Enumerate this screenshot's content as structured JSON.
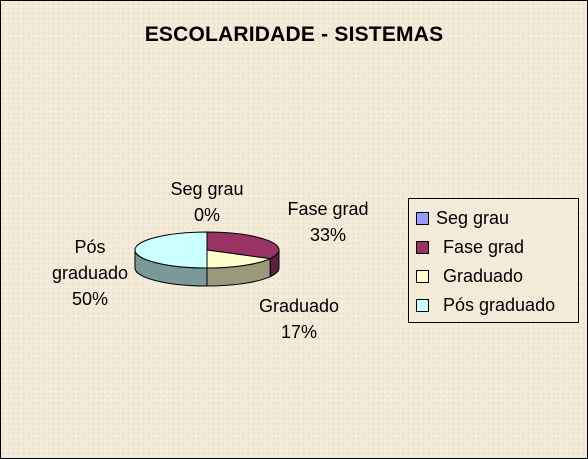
{
  "chart_data": {
    "type": "pie",
    "title": "ESCOLARIDADE - SISTEMAS",
    "slices": [
      {
        "name": "Seg grau",
        "value": 0,
        "label_name": "Seg grau",
        "label_pct": "0%",
        "color": "#9999ff",
        "side": "#5f5fa0"
      },
      {
        "name": "Fase grad",
        "value": 33,
        "label_name": "Fase grad",
        "label_pct": "33%",
        "color": "#993366",
        "side": "#5c1f3d"
      },
      {
        "name": "Graduado",
        "value": 17,
        "label_name": "Graduado",
        "label_pct": "17%",
        "color": "#ffffcc",
        "side": "#9a9a7a"
      },
      {
        "name": "Pós graduado",
        "value": 50,
        "label_name": "Pós graduado",
        "label_pct": "50%",
        "color": "#ccffff",
        "side": "#7a9999"
      }
    ],
    "legend": {
      "position": "right",
      "items": [
        "Seg grau",
        "Fase grad",
        "Graduado",
        "Pós graduado"
      ]
    }
  },
  "labels": {
    "seg": {
      "name": "Seg grau",
      "pct": "0%"
    },
    "fase": {
      "name": "Fase grad",
      "pct": "33%"
    },
    "grad": {
      "name": "Graduado",
      "pct": "17%"
    },
    "pos_line1": "Pós",
    "pos_line2": "graduado",
    "pos_pct": "50%"
  }
}
